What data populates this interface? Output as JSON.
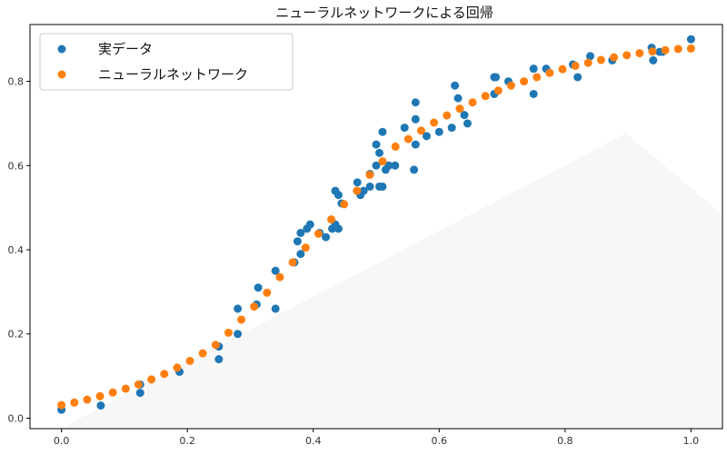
{
  "chart_data": {
    "type": "scatter",
    "title": "ニューラルネットワークによる回帰",
    "xlabel": "",
    "ylabel": "",
    "xlim": [
      -0.05,
      1.05
    ],
    "ylim": [
      -0.025,
      0.935
    ],
    "x_ticks": [
      0.0,
      0.2,
      0.4,
      0.6,
      0.8,
      1.0
    ],
    "x_tick_labels": [
      "0.0",
      "0.2",
      "0.4",
      "0.6",
      "0.8",
      "1.0"
    ],
    "y_ticks": [
      0.0,
      0.2,
      0.4,
      0.6,
      0.8
    ],
    "y_tick_labels": [
      "0.0",
      "0.2",
      "0.4",
      "0.6",
      "0.8"
    ],
    "grid": false,
    "legend_position": "top-left",
    "series": [
      {
        "name": "実データ",
        "color": "#1f77b4",
        "points": [
          [
            0.0,
            0.02
          ],
          [
            0.0625,
            0.03
          ],
          [
            0.125,
            0.06
          ],
          [
            0.125,
            0.08
          ],
          [
            0.1875,
            0.11
          ],
          [
            0.25,
            0.14
          ],
          [
            0.25,
            0.17
          ],
          [
            0.28,
            0.2
          ],
          [
            0.28,
            0.26
          ],
          [
            0.31,
            0.27
          ],
          [
            0.3125,
            0.31
          ],
          [
            0.34,
            0.26
          ],
          [
            0.34,
            0.35
          ],
          [
            0.37,
            0.37
          ],
          [
            0.375,
            0.42
          ],
          [
            0.38,
            0.39
          ],
          [
            0.38,
            0.44
          ],
          [
            0.39,
            0.45
          ],
          [
            0.395,
            0.46
          ],
          [
            0.41,
            0.44
          ],
          [
            0.42,
            0.43
          ],
          [
            0.43,
            0.45
          ],
          [
            0.435,
            0.46
          ],
          [
            0.44,
            0.45
          ],
          [
            0.435,
            0.54
          ],
          [
            0.44,
            0.53
          ],
          [
            0.445,
            0.51
          ],
          [
            0.47,
            0.56
          ],
          [
            0.475,
            0.53
          ],
          [
            0.48,
            0.54
          ],
          [
            0.49,
            0.55
          ],
          [
            0.49,
            0.58
          ],
          [
            0.5,
            0.6
          ],
          [
            0.5,
            0.65
          ],
          [
            0.505,
            0.63
          ],
          [
            0.505,
            0.55
          ],
          [
            0.51,
            0.55
          ],
          [
            0.51,
            0.68
          ],
          [
            0.515,
            0.59
          ],
          [
            0.52,
            0.6
          ],
          [
            0.53,
            0.6
          ],
          [
            0.545,
            0.69
          ],
          [
            0.56,
            0.59
          ],
          [
            0.5625,
            0.65
          ],
          [
            0.5625,
            0.71
          ],
          [
            0.5625,
            0.75
          ],
          [
            0.58,
            0.67
          ],
          [
            0.6,
            0.68
          ],
          [
            0.62,
            0.69
          ],
          [
            0.625,
            0.79
          ],
          [
            0.63,
            0.76
          ],
          [
            0.64,
            0.72
          ],
          [
            0.645,
            0.7
          ],
          [
            0.6875,
            0.77
          ],
          [
            0.6875,
            0.81
          ],
          [
            0.69,
            0.81
          ],
          [
            0.71,
            0.8
          ],
          [
            0.75,
            0.77
          ],
          [
            0.75,
            0.83
          ],
          [
            0.77,
            0.83
          ],
          [
            0.8125,
            0.84
          ],
          [
            0.82,
            0.81
          ],
          [
            0.84,
            0.86
          ],
          [
            0.875,
            0.85
          ],
          [
            0.9375,
            0.88
          ],
          [
            0.94,
            0.85
          ],
          [
            0.95,
            0.87
          ],
          [
            0.955,
            0.87
          ],
          [
            1.0,
            0.9
          ]
        ]
      },
      {
        "name": "ニューラルネットワーク",
        "color": "#ff7f0e",
        "points": [
          [
            0.0,
            0.031
          ],
          [
            0.0204,
            0.037
          ],
          [
            0.0408,
            0.044
          ],
          [
            0.0612,
            0.052
          ],
          [
            0.0816,
            0.061
          ],
          [
            0.102,
            0.07
          ],
          [
            0.1224,
            0.08
          ],
          [
            0.1429,
            0.092
          ],
          [
            0.1633,
            0.105
          ],
          [
            0.1837,
            0.12
          ],
          [
            0.2041,
            0.136
          ],
          [
            0.2245,
            0.154
          ],
          [
            0.2449,
            0.174
          ],
          [
            0.2653,
            0.203
          ],
          [
            0.2857,
            0.234
          ],
          [
            0.3061,
            0.265
          ],
          [
            0.3265,
            0.298
          ],
          [
            0.3469,
            0.335
          ],
          [
            0.3673,
            0.37
          ],
          [
            0.3878,
            0.405
          ],
          [
            0.4082,
            0.438
          ],
          [
            0.4286,
            0.472
          ],
          [
            0.449,
            0.508
          ],
          [
            0.4694,
            0.54
          ],
          [
            0.4898,
            0.578
          ],
          [
            0.5102,
            0.61
          ],
          [
            0.5306,
            0.645
          ],
          [
            0.551,
            0.663
          ],
          [
            0.5714,
            0.683
          ],
          [
            0.5918,
            0.702
          ],
          [
            0.6122,
            0.719
          ],
          [
            0.6327,
            0.735
          ],
          [
            0.6531,
            0.75
          ],
          [
            0.6735,
            0.765
          ],
          [
            0.6939,
            0.778
          ],
          [
            0.7143,
            0.79
          ],
          [
            0.7347,
            0.8
          ],
          [
            0.7551,
            0.81
          ],
          [
            0.7755,
            0.82
          ],
          [
            0.7959,
            0.829
          ],
          [
            0.8163,
            0.837
          ],
          [
            0.8367,
            0.844
          ],
          [
            0.8571,
            0.851
          ],
          [
            0.8776,
            0.857
          ],
          [
            0.898,
            0.862
          ],
          [
            0.9184,
            0.867
          ],
          [
            0.9388,
            0.871
          ],
          [
            0.9592,
            0.874
          ],
          [
            0.9796,
            0.877
          ],
          [
            1.0,
            0.878
          ]
        ]
      }
    ]
  }
}
